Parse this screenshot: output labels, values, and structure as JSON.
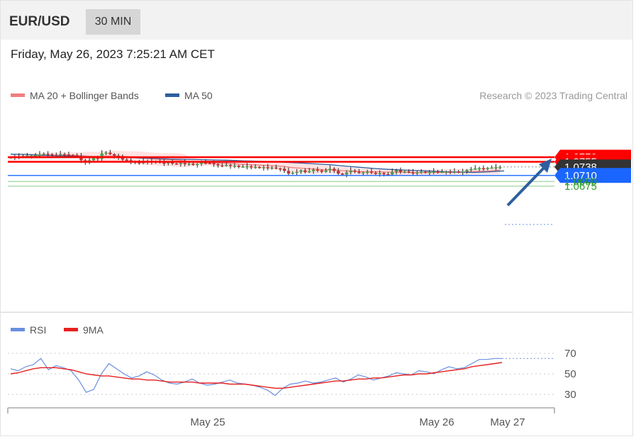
{
  "header": {
    "pair": "EUR/USD",
    "timeframe": "30 MIN"
  },
  "datetime": "Friday, May 26, 2023 7:25:21 AM CET",
  "legend": {
    "ma20_label": "MA 20 + Bollinger Bands",
    "ma50_label": "MA 50",
    "ma20_color": "#f08080",
    "ma50_color": "#2e5f9e",
    "credit": "Research © 2023 Trading Central"
  },
  "rsi_legend": {
    "rsi_label": "RSI",
    "ma_label": "9MA",
    "rsi_color": "#6a8fe0",
    "ma_color": "#e62020"
  },
  "chart_data": [
    {
      "type": "candlestick",
      "ylim": [
        1.066,
        1.0795
      ],
      "x_ticks": [
        "May 25",
        "May 26",
        "May 27"
      ],
      "levels": [
        {
          "value": 1.077,
          "label": "1.0770",
          "kind": "resistance",
          "color": "#ff0000"
        },
        {
          "value": 1.0755,
          "label": "1.0755",
          "kind": "resistance",
          "color": "#ff0000"
        },
        {
          "value": 1.0738,
          "label": "1.0738",
          "kind": "last_price",
          "color": "#333333"
        },
        {
          "value": 1.071,
          "label": "1.0710",
          "kind": "support",
          "color": "#1a66ff"
        },
        {
          "value": 1.069,
          "label": "1.0690",
          "kind": "target",
          "color": "#2a9a2a"
        },
        {
          "value": 1.0675,
          "label": "1.0675",
          "kind": "target",
          "color": "#2a9a2a"
        }
      ],
      "close": [
        1.077,
        1.0771,
        1.0772,
        1.0774,
        1.0775,
        1.0775,
        1.0777,
        1.0779,
        1.0781,
        1.078,
        1.0778,
        1.0776,
        1.078,
        1.0779,
        1.0777,
        1.0776,
        1.0773,
        1.076,
        1.0752,
        1.076,
        1.0768,
        1.0765,
        1.0782,
        1.0785,
        1.078,
        1.0775,
        1.0768,
        1.0762,
        1.076,
        1.0756,
        1.0754,
        1.075,
        1.0755,
        1.0757,
        1.0753,
        1.0756,
        1.0752,
        1.075,
        1.0753,
        1.0749,
        1.0748,
        1.0751,
        1.0747,
        1.0749,
        1.0745,
        1.0748,
        1.0752,
        1.0751,
        1.075,
        1.0747,
        1.0743,
        1.0742,
        1.0744,
        1.0741,
        1.0742,
        1.0738,
        1.0739,
        1.074,
        1.0737,
        1.0738,
        1.0735,
        1.0737,
        1.0734,
        1.0736,
        1.0733,
        1.0732,
        1.0725,
        1.0716,
        1.0719,
        1.0722,
        1.0727,
        1.0721,
        1.0724,
        1.0729,
        1.0727,
        1.0722,
        1.0727,
        1.0732,
        1.0725,
        1.0716,
        1.0713,
        1.072,
        1.0726,
        1.0722,
        1.0718,
        1.072,
        1.0722,
        1.0719,
        1.0715,
        1.0718,
        1.0714,
        1.0713,
        1.0722,
        1.0727,
        1.0722,
        1.0723,
        1.072,
        1.0718,
        1.072,
        1.0722,
        1.0719,
        1.0721,
        1.0723,
        1.0721,
        1.0722,
        1.0723,
        1.0721,
        1.0723,
        1.072,
        1.0723,
        1.0728,
        1.0731,
        1.0733,
        1.0734,
        1.0732,
        1.0735,
        1.0736,
        1.0737,
        1.0738
      ],
      "ma50": [
        1.078,
        1.0779,
        1.0777,
        1.0775,
        1.0774,
        1.0772,
        1.0771,
        1.077,
        1.0769,
        1.0767,
        1.0766,
        1.0764,
        1.0763,
        1.0762,
        1.0761,
        1.076,
        1.0758,
        1.0757,
        1.0755,
        1.0753,
        1.0751,
        1.0748,
        1.0745,
        1.0741,
        1.0737,
        1.0733,
        1.073,
        1.0728,
        1.0726,
        1.0724,
        1.0722,
        1.0721,
        1.072,
        1.0722,
        1.0725
      ],
      "ma50_step": 3.5
    },
    {
      "type": "line",
      "title": "RSI",
      "ylim": [
        25,
        75
      ],
      "y_ticks": [
        30,
        50,
        70
      ],
      "series": [
        {
          "name": "RSI",
          "values": [
            55,
            53,
            57,
            59,
            65,
            54,
            58,
            56,
            53,
            44,
            32,
            35,
            50,
            60,
            55,
            50,
            46,
            48,
            52,
            49,
            44,
            41,
            40,
            42,
            45,
            41,
            39,
            40,
            42,
            44,
            41,
            40,
            39,
            37,
            34,
            29,
            36,
            40,
            41,
            43,
            41,
            42,
            44,
            46,
            42,
            45,
            49,
            47,
            44,
            46,
            48,
            51,
            50,
            49,
            53,
            52,
            50,
            54,
            57,
            55,
            56,
            60,
            64,
            64,
            65,
            65
          ]
        },
        {
          "name": "9MA",
          "values": [
            50,
            51,
            53,
            55,
            56,
            56,
            56,
            55,
            54,
            52,
            50,
            49,
            48,
            48,
            47,
            46,
            45,
            45,
            44,
            44,
            43,
            42,
            42,
            42,
            42,
            41,
            41,
            41,
            41,
            40,
            40,
            40,
            39,
            38,
            37,
            36,
            36,
            37,
            38,
            39,
            40,
            41,
            42,
            43,
            43,
            44,
            45,
            45,
            46,
            46,
            47,
            48,
            49,
            49,
            50,
            50,
            51,
            52,
            53,
            54,
            55,
            57,
            58,
            59,
            60,
            61
          ]
        }
      ]
    }
  ]
}
